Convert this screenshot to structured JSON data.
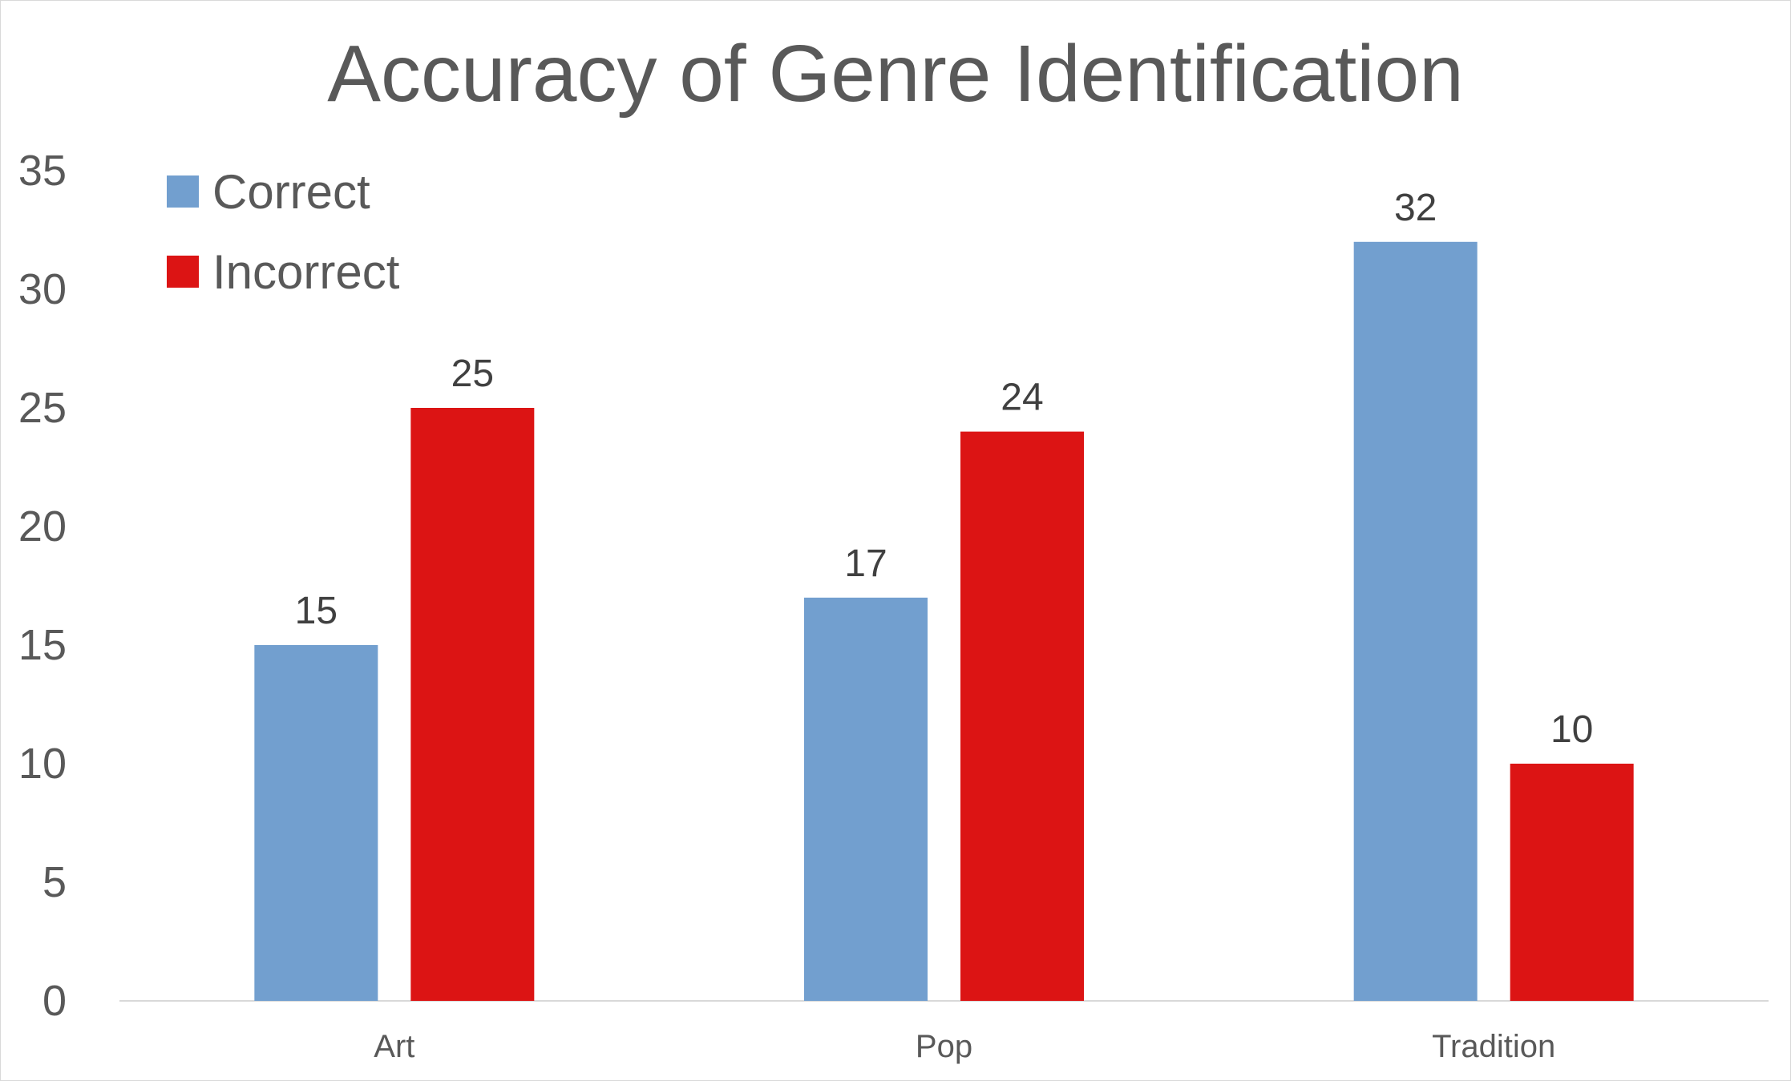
{
  "chart_data": {
    "type": "bar",
    "title": "Accuracy of Genre Identification",
    "xlabel": "",
    "ylabel": "",
    "categories": [
      "Art",
      "Pop",
      "Tradition"
    ],
    "series": [
      {
        "name": "Correct",
        "color": "#729fcf",
        "values": [
          15,
          17,
          32
        ]
      },
      {
        "name": "Incorrect",
        "color": "#dc1414",
        "values": [
          25,
          24,
          10
        ]
      }
    ],
    "ylim": [
      0,
      35
    ],
    "yticks": [
      0,
      5,
      10,
      15,
      20,
      25,
      30,
      35
    ],
    "grid": false,
    "legend_position": "top-left",
    "data_labels": true,
    "axis_color": "#d9d9d9"
  }
}
